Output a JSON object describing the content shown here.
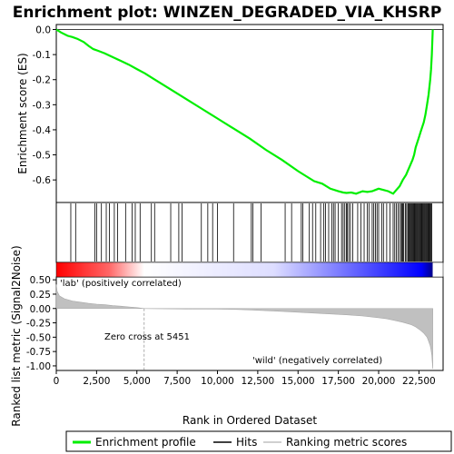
{
  "chart_data": {
    "type": "line",
    "title": "Enrichment plot: WINZEN_DEGRADED_VIA_KHSRP",
    "xlabel": "Rank in Ordered Dataset",
    "ylabel_top": "Enrichment score (ES)",
    "ylabel_bottom": "Ranked list metric (Signal2Noise)",
    "xlim": [
      0,
      24000
    ],
    "x_ticks": [
      0,
      2500,
      5000,
      7500,
      10000,
      12500,
      15000,
      17500,
      20000,
      22500
    ],
    "x_tick_labels": [
      "0",
      "2,500",
      "5,000",
      "7,500",
      "10,000",
      "12,500",
      "15,000",
      "17,500",
      "20,000",
      "22,500"
    ],
    "es_ylim": [
      -0.69,
      0.02
    ],
    "es_ticks": [
      0.0,
      -0.1,
      -0.2,
      -0.3,
      -0.4,
      -0.5,
      -0.6
    ],
    "es_tick_labels": [
      "0.0",
      "-0.1",
      "-0.2",
      "-0.3",
      "-0.4",
      "-0.5",
      "-0.6"
    ],
    "metric_ylim": [
      -1.08,
      0.55
    ],
    "metric_ticks": [
      0.5,
      0.25,
      0.0,
      -0.25,
      -0.5,
      -0.75,
      -1.0
    ],
    "metric_tick_labels": [
      "0.50",
      "0.25",
      "0.00",
      "-0.25",
      "-0.50",
      "-0.75",
      "-1.00"
    ],
    "enrichment_profile": {
      "x": [
        0,
        300,
        700,
        1000,
        1300,
        1700,
        2000,
        2300,
        2600,
        3000,
        3500,
        4000,
        4500,
        5000,
        5500,
        6000,
        7000,
        8000,
        9000,
        10000,
        11000,
        12000,
        13000,
        14000,
        15000,
        15500,
        16000,
        16500,
        17000,
        17500,
        17800,
        18000,
        18300,
        18600,
        19000,
        19300,
        19600,
        19800,
        20000,
        20300,
        20600,
        20900,
        21100,
        21300,
        21500,
        21700,
        21900,
        22100,
        22200,
        22300,
        22500,
        22600,
        22700,
        22800,
        22900,
        23000,
        23100,
        23150,
        23200,
        23250,
        23300,
        23330,
        23360
      ],
      "y": [
        0.0,
        -0.012,
        -0.025,
        -0.03,
        -0.037,
        -0.05,
        -0.065,
        -0.078,
        -0.085,
        -0.095,
        -0.11,
        -0.125,
        -0.14,
        -0.158,
        -0.175,
        -0.195,
        -0.235,
        -0.275,
        -0.315,
        -0.355,
        -0.395,
        -0.435,
        -0.48,
        -0.52,
        -0.565,
        -0.585,
        -0.605,
        -0.615,
        -0.635,
        -0.645,
        -0.65,
        -0.652,
        -0.65,
        -0.655,
        -0.645,
        -0.648,
        -0.645,
        -0.64,
        -0.635,
        -0.64,
        -0.645,
        -0.655,
        -0.64,
        -0.625,
        -0.6,
        -0.58,
        -0.55,
        -0.52,
        -0.5,
        -0.47,
        -0.43,
        -0.41,
        -0.39,
        -0.37,
        -0.34,
        -0.3,
        -0.26,
        -0.23,
        -0.2,
        -0.16,
        -0.1,
        -0.05,
        0.0
      ]
    },
    "hits": [
      900,
      1200,
      2400,
      2500,
      2800,
      3100,
      3300,
      3600,
      3800,
      4300,
      4700,
      4900,
      5200,
      5900,
      6100,
      7100,
      7600,
      7800,
      9000,
      9400,
      9700,
      10000,
      11000,
      12100,
      12200,
      12700,
      14200,
      14600,
      15200,
      15300,
      15700,
      15900,
      16100,
      16400,
      16600,
      16700,
      16900,
      17100,
      17200,
      17300,
      17500,
      17700,
      17800,
      17900,
      18000,
      18050,
      18150,
      18250,
      18400,
      18700,
      18900,
      19100,
      19300,
      19400,
      19600,
      19700,
      19800,
      19900,
      20000,
      20200,
      20300,
      20500,
      20700,
      20900,
      21000,
      21100,
      21200,
      21300,
      21400,
      21450,
      21500,
      21550,
      21650,
      21700,
      21800,
      21850,
      21900,
      21950,
      22000,
      22050,
      22100,
      22150,
      22200,
      22250,
      22300,
      22350,
      22400,
      22450,
      22500,
      22550,
      22600,
      22650,
      22700,
      22750,
      22800,
      22850,
      22900,
      22950,
      23000,
      23050,
      23100,
      23150,
      23200,
      23250,
      23300
    ],
    "metric_profile": {
      "x": [
        0,
        50,
        200,
        500,
        1000,
        1500,
        2000,
        2500,
        3000,
        3500,
        4000,
        4500,
        5000,
        5451,
        6000,
        8000,
        10000,
        11000,
        12000,
        14000,
        16000,
        18000,
        19000,
        20000,
        20500,
        21000,
        21500,
        22000,
        22300,
        22600,
        22800,
        23000,
        23100,
        23200,
        23250,
        23300,
        23360
      ],
      "y": [
        0.42,
        0.3,
        0.22,
        0.17,
        0.13,
        0.11,
        0.09,
        0.075,
        0.065,
        0.05,
        0.04,
        0.028,
        0.015,
        0.0,
        -0.003,
        -0.008,
        -0.012,
        -0.015,
        -0.025,
        -0.05,
        -0.08,
        -0.11,
        -0.13,
        -0.16,
        -0.18,
        -0.21,
        -0.24,
        -0.28,
        -0.32,
        -0.38,
        -0.43,
        -0.5,
        -0.57,
        -0.65,
        -0.72,
        -0.82,
        -1.05
      ]
    },
    "annotations": {
      "zero_cross_rank": 5451,
      "zero_cross_text": "Zero cross at 5451",
      "positive_label": "'lab' (positively correlated)",
      "negative_label": "'wild' (negatively correlated)"
    },
    "legend": {
      "placement": "bottom",
      "items": [
        {
          "label": "Enrichment profile",
          "color": "#00ee00",
          "kind": "line"
        },
        {
          "label": "Hits",
          "color": "#000000",
          "kind": "line"
        },
        {
          "label": "Ranking metric scores",
          "color": "#c0c0c0",
          "kind": "line"
        }
      ]
    },
    "colors": {
      "enrichment": "#00ee00",
      "hits": "#000000",
      "metric_fill": "#c0c0c0",
      "positive": "#ff0000",
      "negative": "#0000ff",
      "pos_label": "#cc0000",
      "neg_label": "#0000cc"
    }
  }
}
